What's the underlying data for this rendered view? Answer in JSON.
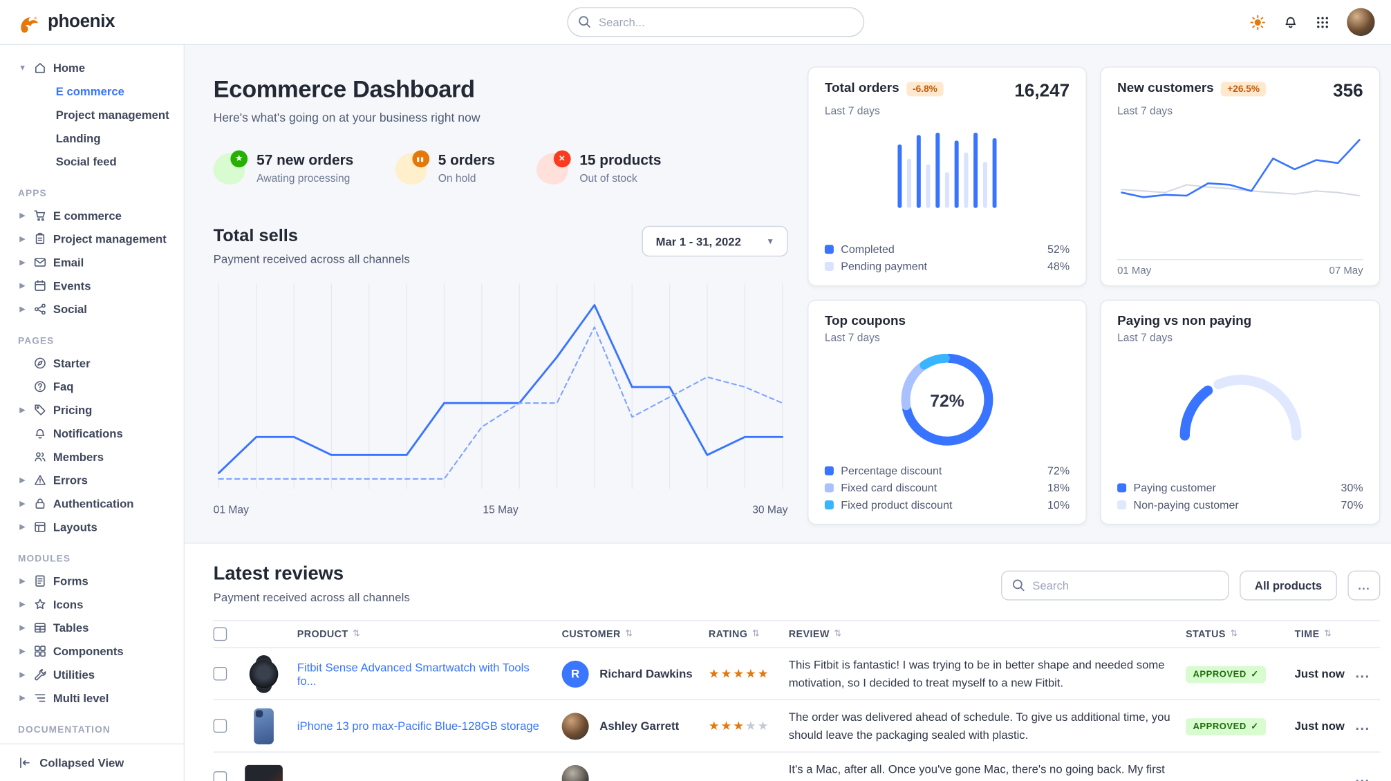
{
  "brand": {
    "name": "phoenix"
  },
  "topbar": {
    "search_placeholder": "Search..."
  },
  "sidebar": {
    "sections": [
      {
        "label": "",
        "items": [
          {
            "label": "Home",
            "icon": "home",
            "caret": true,
            "children": [
              {
                "label": "E commerce",
                "active": true
              },
              {
                "label": "Project management"
              },
              {
                "label": "Landing"
              },
              {
                "label": "Social feed"
              }
            ]
          }
        ]
      },
      {
        "label": "APPS",
        "items": [
          {
            "label": "E commerce",
            "icon": "cart",
            "chevron": true
          },
          {
            "label": "Project management",
            "icon": "clipboard",
            "chevron": true
          },
          {
            "label": "Email",
            "icon": "mail",
            "chevron": true
          },
          {
            "label": "Events",
            "icon": "calendar",
            "chevron": true
          },
          {
            "label": "Social",
            "icon": "share",
            "chevron": true
          }
        ]
      },
      {
        "label": "PAGES",
        "items": [
          {
            "label": "Starter",
            "icon": "compass"
          },
          {
            "label": "Faq",
            "icon": "help"
          },
          {
            "label": "Pricing",
            "icon": "tag",
            "chevron": true
          },
          {
            "label": "Notifications",
            "icon": "bell"
          },
          {
            "label": "Members",
            "icon": "users"
          },
          {
            "label": "Errors",
            "icon": "alert",
            "chevron": true
          },
          {
            "label": "Authentication",
            "icon": "lock",
            "chevron": true
          },
          {
            "label": "Layouts",
            "icon": "layout",
            "chevron": true
          }
        ]
      },
      {
        "label": "MODULES",
        "items": [
          {
            "label": "Forms",
            "icon": "forms",
            "chevron": true
          },
          {
            "label": "Icons",
            "icon": "star",
            "chevron": true
          },
          {
            "label": "Tables",
            "icon": "table",
            "chevron": true
          },
          {
            "label": "Components",
            "icon": "components",
            "chevron": true
          },
          {
            "label": "Utilities",
            "icon": "tools",
            "chevron": true
          },
          {
            "label": "Multi level",
            "icon": "list",
            "chevron": true
          }
        ]
      },
      {
        "label": "DOCUMENTATION",
        "items": []
      }
    ],
    "footer_label": "Collapsed View"
  },
  "page": {
    "title": "Ecommerce Dashboard",
    "subtitle": "Here's what's going on at your business right now"
  },
  "stats": [
    {
      "value": "57 new orders",
      "caption": "Awating processing",
      "tone": "success",
      "icon": "star-icon"
    },
    {
      "value": "5 orders",
      "caption": "On hold",
      "tone": "warning",
      "icon": "pause-icon"
    },
    {
      "value": "15 products",
      "caption": "Out of stock",
      "tone": "danger",
      "icon": "x-icon"
    }
  ],
  "total_sells": {
    "title": "Total sells",
    "subtitle": "Payment received across all channels",
    "date_range": "Mar 1 - 31, 2022",
    "axis": [
      "01 May",
      "15 May",
      "30 May"
    ]
  },
  "cards": {
    "total_orders": {
      "title": "Total orders",
      "badge": "-6.8%",
      "period": "Last 7 days",
      "value": "16,247"
    },
    "new_customers": {
      "title": "New customers",
      "badge": "+26.5%",
      "period": "Last 7 days",
      "value": "356",
      "axis": [
        "01 May",
        "07 May"
      ]
    },
    "top_coupons": {
      "title": "Top coupons",
      "period": "Last 7 days",
      "center_label": "72%"
    },
    "paying": {
      "title": "Paying vs non paying",
      "period": "Last 7 days"
    }
  },
  "reviews": {
    "title": "Latest reviews",
    "subtitle": "Payment received across all channels",
    "search_placeholder": "Search",
    "filter_label": "All products",
    "more_label": "...",
    "row_more_label": "...",
    "sort_glyph": "⇅",
    "columns": [
      "PRODUCT",
      "CUSTOMER",
      "RATING",
      "REVIEW",
      "STATUS",
      "TIME"
    ],
    "rows": [
      {
        "product": "Fitbit Sense Advanced Smartwatch with Tools fo...",
        "thumb": "watch",
        "customer": "Richard Dawkins",
        "avatar_initial": "R",
        "rating": 5,
        "review": "This Fitbit is fantastic! I was trying to be in better shape and needed some motivation, so I decided to treat myself to a new Fitbit.",
        "status": "APPROVED",
        "time": "Just now"
      },
      {
        "product": "iPhone 13 pro max-Pacific Blue-128GB storage",
        "thumb": "phone",
        "customer": "Ashley Garrett",
        "avatar": "photo1",
        "rating": 3,
        "review": "The order was delivered ahead of schedule. To give us additional time, you should leave the packaging sealed with plastic.",
        "status": "APPROVED",
        "time": "Just now"
      },
      {
        "product": "",
        "thumb": "laptop",
        "customer": "",
        "avatar": "photo2",
        "rating": null,
        "review": "It's a Mac, after all. Once you've gone Mac, there's no going back. My first Mac lasted...",
        "status": "",
        "time": ""
      }
    ]
  },
  "chart_data": [
    {
      "id": "total-sells",
      "type": "line",
      "title": "Total sells",
      "x_labels": [
        "01 May",
        "15 May",
        "30 May"
      ],
      "ylim": [
        0,
        100
      ],
      "grid": "vertical",
      "series": [
        {
          "name": "current",
          "style": "solid",
          "color": "#3874ff",
          "values": [
            7,
            25,
            25,
            16,
            16,
            16,
            42,
            42,
            42,
            65,
            91,
            50,
            50,
            16,
            25,
            25
          ]
        },
        {
          "name": "previous",
          "style": "dashed",
          "color": "#7fa4ff",
          "values": [
            4,
            4,
            4,
            4,
            4,
            4,
            4,
            30,
            42,
            42,
            80,
            35,
            45,
            55,
            50,
            42
          ]
        }
      ]
    },
    {
      "id": "total-orders",
      "type": "bar",
      "ylim": [
        0,
        100
      ],
      "values": [
        80,
        62,
        92,
        55,
        95,
        45,
        85,
        70,
        95,
        58,
        88
      ],
      "bar_colors_alternate": [
        "#3874ff",
        "#d9e2ff"
      ],
      "legend": [
        {
          "label": "Completed",
          "value": "52%",
          "color": "#3874ff"
        },
        {
          "label": "Pending payment",
          "value": "48%",
          "color": "#d9e2ff"
        }
      ]
    },
    {
      "id": "new-customers",
      "type": "line",
      "x_labels": [
        "01 May",
        "07 May"
      ],
      "ylim": [
        0,
        100
      ],
      "series": [
        {
          "name": "previous",
          "style": "solid",
          "color": "#d3d8e3",
          "values": [
            32,
            30,
            28,
            38,
            35,
            33,
            30,
            28,
            26,
            30,
            28,
            24
          ]
        },
        {
          "name": "current",
          "style": "solid",
          "color": "#3874ff",
          "values": [
            28,
            22,
            25,
            24,
            40,
            38,
            30,
            72,
            58,
            70,
            66,
            96
          ]
        }
      ]
    },
    {
      "id": "top-coupons",
      "type": "pie",
      "donut": true,
      "center_label": "72%",
      "segments": [
        {
          "label": "Percentage discount",
          "value": 72,
          "color": "#3874ff"
        },
        {
          "label": "Fixed card discount",
          "value": 18,
          "color": "#a9c2ff"
        },
        {
          "label": "Fixed product discount",
          "value": 10,
          "color": "#39b5ff"
        }
      ]
    },
    {
      "id": "paying-gauge",
      "type": "gauge",
      "segments": [
        {
          "label": "Paying customer",
          "value": 30,
          "color": "#3874ff"
        },
        {
          "label": "Non-paying customer",
          "value": 70,
          "color": "#dfe8ff"
        }
      ]
    }
  ]
}
